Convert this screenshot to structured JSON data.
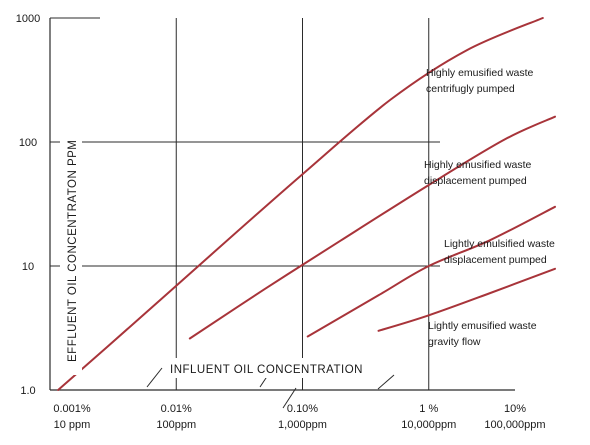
{
  "chart_data": {
    "type": "line",
    "xscale": "log",
    "yscale": "log",
    "xlabel": "INFLUENT OIL CONCENTRATION",
    "ylabel": "EFFLUENT OIL CONCENTRATON PPM",
    "xlim": [
      10,
      100000
    ],
    "ylim": [
      1,
      1000
    ],
    "grid": true,
    "x_ticks": [
      {
        "value": 10,
        "pct": "0.001%",
        "ppm": "10 ppm"
      },
      {
        "value": 100,
        "pct": "0.01%",
        "ppm": "100ppm"
      },
      {
        "value": 1000,
        "pct": "0.10%",
        "ppm": "1,000ppm"
      },
      {
        "value": 10000,
        "pct": "1 %",
        "ppm": "10,000ppm"
      },
      {
        "value": 100000,
        "pct": "10%",
        "ppm": "100,000ppm"
      }
    ],
    "y_ticks": [
      {
        "value": 1,
        "label": "1.0"
      },
      {
        "value": 10,
        "label": "10"
      },
      {
        "value": 100,
        "label": "100"
      },
      {
        "value": 1000,
        "label": "1000"
      }
    ],
    "series": [
      {
        "name": "Highly emusified waste centrifugly pumped",
        "label_lines": [
          "Highly emusified waste",
          "centrifugly pumped"
        ],
        "x": [
          11.6,
          50,
          200,
          1000,
          5000,
          20000,
          80000
        ],
        "y": [
          1,
          3.7,
          13,
          55,
          220,
          550,
          1000
        ]
      },
      {
        "name": "Highly emusified waste displacement pumped",
        "label_lines": [
          "Highly emusified waste",
          "displacement pumped"
        ],
        "x": [
          128,
          500,
          2000,
          10000,
          40000,
          100000
        ],
        "y": [
          2.6,
          6.5,
          16,
          45,
          105,
          160
        ]
      },
      {
        "name": "Lightly emulsified waste displacement pumped",
        "label_lines": [
          "Lightly emulsified waste",
          "displacement pumped"
        ],
        "x": [
          1100,
          4000,
          10000,
          30000,
          100000
        ],
        "y": [
          2.7,
          5.8,
          10,
          16,
          30
        ]
      },
      {
        "name": "Lightly emusified waste gravity flow",
        "label_lines": [
          "Lightly emusified waste",
          "gravity flow"
        ],
        "x": [
          4000,
          10000,
          30000,
          100000
        ],
        "y": [
          3,
          4,
          6,
          9.5
        ]
      }
    ]
  },
  "colors": {
    "curve": "#a8343a",
    "grid": "#2b2b2b",
    "text": "#1a1a1a"
  }
}
